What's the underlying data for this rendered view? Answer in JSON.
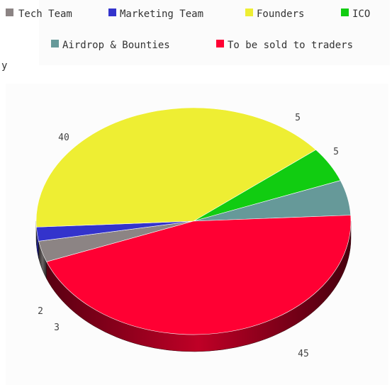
{
  "stray_label": "y",
  "chart_data": {
    "type": "pie",
    "style": "3d",
    "title": "",
    "legend_position": "top",
    "categories": [
      "Tech Team",
      "Marketing Team",
      "Founders",
      "ICO",
      "Airdrop & Bounties",
      "To be sold to traders"
    ],
    "values": [
      3,
      2,
      40,
      5,
      5,
      45
    ],
    "value_labels": [
      "3",
      "2",
      "40",
      "5",
      "5",
      "45"
    ],
    "colors": [
      "#8c8484",
      "#3333cc",
      "#eeee33",
      "#11cc11",
      "#669999",
      "#ff0033"
    ]
  }
}
